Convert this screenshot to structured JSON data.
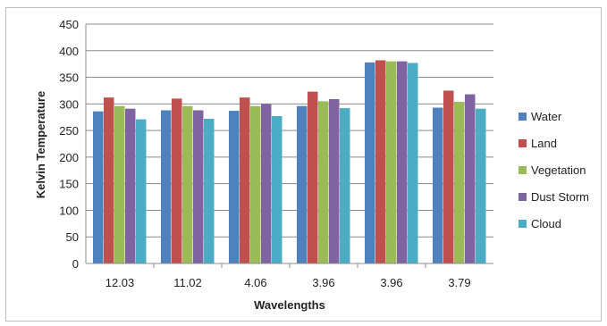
{
  "chart_data": {
    "type": "bar",
    "title": "",
    "xlabel": "Wavelengths",
    "ylabel": "Kelvin Temperature",
    "ylim": [
      0,
      450
    ],
    "ytick_step": 50,
    "grid": true,
    "legend_position": "right",
    "categories": [
      "12.03",
      "11.02",
      "4.06",
      "3.96",
      "3.96",
      "3.79"
    ],
    "series": [
      {
        "name": "Water",
        "color": "#4f81bd",
        "values": [
          286,
          288,
          287,
          296,
          378,
          293
        ]
      },
      {
        "name": "Land",
        "color": "#c0504d",
        "values": [
          312,
          310,
          312,
          323,
          382,
          325
        ]
      },
      {
        "name": "Vegetation",
        "color": "#9bbb59",
        "values": [
          296,
          296,
          296,
          305,
          380,
          304
        ]
      },
      {
        "name": "Dust Storm",
        "color": "#8064a2",
        "values": [
          291,
          288,
          300,
          309,
          380,
          318
        ]
      },
      {
        "name": "Cloud",
        "color": "#4bacc6",
        "values": [
          271,
          272,
          277,
          292,
          377,
          291
        ]
      }
    ]
  }
}
